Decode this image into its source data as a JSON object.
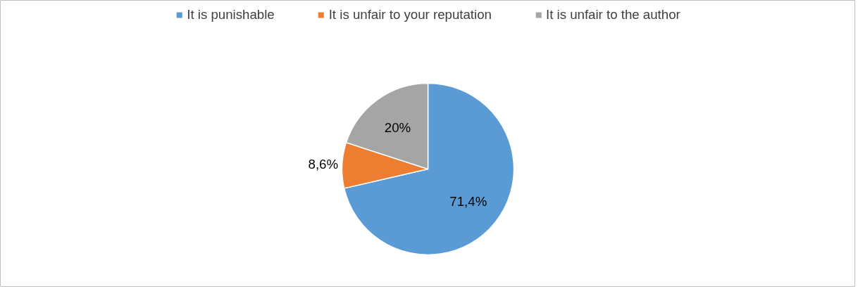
{
  "chart_data": {
    "type": "pie",
    "categories": [
      "It is punishable",
      "It is unfair to your reputation",
      "It is unfair to the author"
    ],
    "values": [
      71.4,
      8.6,
      20
    ],
    "colors": [
      "#5b9bd5",
      "#ed7d31",
      "#a5a5a5"
    ],
    "value_labels": [
      "71,4%",
      "8,6%",
      "20%"
    ],
    "legend": "top"
  }
}
